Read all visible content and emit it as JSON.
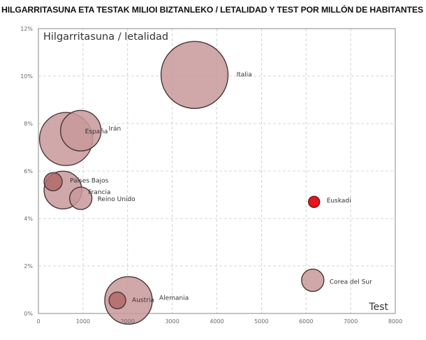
{
  "title": "HILGARRITASUNA ETA TESTAK MILIOI BIZTANLEKO / LETALIDAD Y TEST POR MILLÓN DE HABITANTES",
  "chart_data": {
    "type": "bubble",
    "title": "HILGARRITASUNA ETA TESTAK MILIOI BIZTANLEKO / LETALIDAD Y TEST POR MILLÓN DE HABITANTES",
    "inner_title": "Hilgarritasuna / letalidad",
    "xlabel": "Test",
    "ylabel": "",
    "xlim": [
      0,
      8000
    ],
    "ylim": [
      0,
      12
    ],
    "x_ticks": [
      "0",
      "1000",
      "2000",
      "3000",
      "4000",
      "5000",
      "6000",
      "7000",
      "8000"
    ],
    "y_ticks": [
      "0%",
      "2%",
      "4%",
      "6%",
      "8%",
      "10%",
      "12%"
    ],
    "grid": true,
    "points": [
      {
        "label": "Italia",
        "x": 3500,
        "y": 10.05,
        "size": 48
      },
      {
        "label": "España",
        "x": 620,
        "y": 7.35,
        "size": 38
      },
      {
        "label": "Irán",
        "x": 950,
        "y": 7.7,
        "size": 29
      },
      {
        "label": "Alemania",
        "x": 2020,
        "y": 0.55,
        "size": 34
      },
      {
        "label": "Austria",
        "x": 1770,
        "y": 0.55,
        "size": 12
      },
      {
        "label": "Países Bajos",
        "x": 330,
        "y": 5.55,
        "size": 13
      },
      {
        "label": "Francia",
        "x": 550,
        "y": 5.2,
        "size": 27
      },
      {
        "label": "Reino Unido",
        "x": 950,
        "y": 4.85,
        "size": 16
      },
      {
        "label": "Corea del Sur",
        "x": 6150,
        "y": 1.4,
        "size": 16
      },
      {
        "label": "Euskadi",
        "x": 6180,
        "y": 4.7,
        "size": 8,
        "highlight": true
      }
    ],
    "colors": {
      "bubble_fill": "#c8999a",
      "bubble_fill_overlap": "#b06a6b",
      "bubble_stroke": "#4a3535",
      "highlight_fill": "#e8141c",
      "grid": "#c8c8c8",
      "plot_border": "#888888"
    }
  }
}
